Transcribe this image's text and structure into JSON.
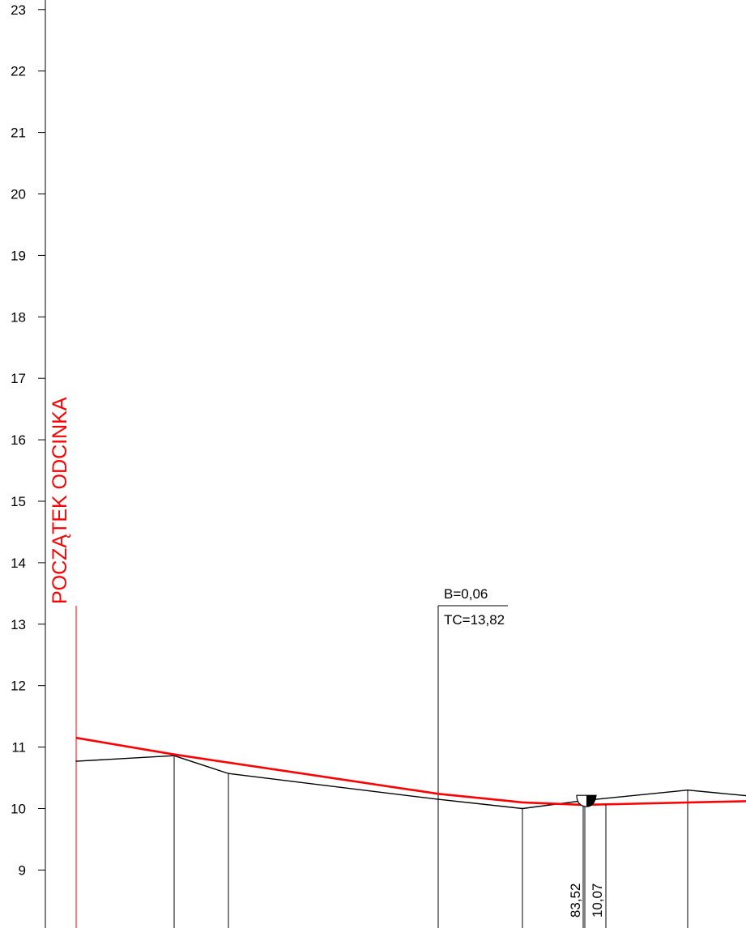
{
  "chart_data": {
    "type": "line",
    "title": "",
    "xlabel": "",
    "ylabel": "",
    "ylim": [
      8.2,
      23.3
    ],
    "y_ticks": [
      "9",
      "10",
      "11",
      "12",
      "13",
      "14",
      "15",
      "16",
      "17",
      "18",
      "19",
      "20",
      "21",
      "22",
      "23"
    ],
    "grid": false,
    "series": [
      {
        "name": "",
        "role": "terrain",
        "color": "#000000",
        "points": [
          [
            94,
            10.77
          ],
          [
            215,
            10.86
          ],
          [
            282,
            10.57
          ],
          [
            541,
            10.15
          ],
          [
            645,
            10.0
          ],
          [
            720,
            10.13
          ],
          [
            849,
            10.3
          ],
          [
            921,
            10.21
          ]
        ]
      },
      {
        "name": "",
        "role": "design",
        "color": "#ff0000",
        "points": [
          [
            94,
            11.15
          ],
          [
            215,
            10.88
          ],
          [
            541,
            10.24
          ],
          [
            645,
            10.1
          ],
          [
            720,
            10.06
          ],
          [
            921,
            10.12
          ]
        ]
      }
    ],
    "station_lines": [
      94,
      215,
      282,
      541,
      645,
      720,
      849
    ],
    "start_marker": {
      "x": 94,
      "label": "POCZĄTEK ODCINKA",
      "top_level": 13.3
    },
    "callout": {
      "x": 541,
      "level": 10.05,
      "top_level": 13.3,
      "lines": [
        "B=0,06",
        "TC=13,82"
      ]
    },
    "crossing": {
      "x": 726,
      "level": 10.07,
      "labels": [
        "83,52",
        "10,07"
      ]
    }
  }
}
